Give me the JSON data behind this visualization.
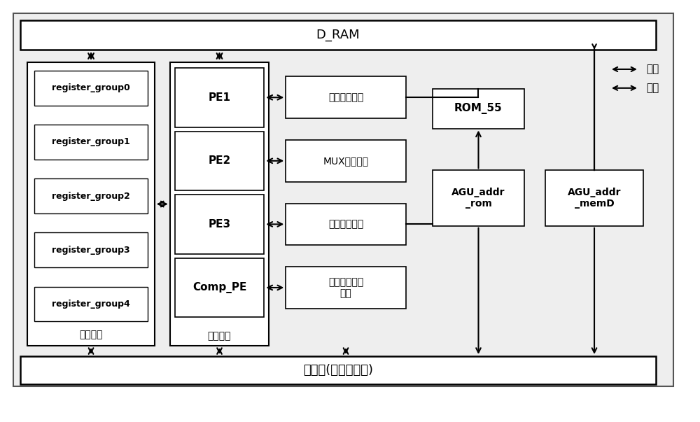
{
  "bg_color": "#ffffff",
  "title": "D_RAM",
  "bottom_label": "控制器(有限状态机)",
  "register_group_label": "寄存器组",
  "pe_group_label": "处理单元",
  "legend_data_label": "数据",
  "legend_ctrl_label": "控制",
  "register_boxes": [
    "register_group0",
    "register_group1",
    "register_group2",
    "register_group3",
    "register_group4"
  ],
  "pe_boxes": [
    "PE1",
    "PE2",
    "PE3",
    "Comp_PE"
  ],
  "control_boxes": [
    "系统延时模块",
    "MUX配置模块",
    "计算控制模块",
    "信号源数估计\n模块"
  ],
  "rom_box": "ROM_55",
  "agu_rom_box": "AGU_addr\n_rom",
  "agu_memd_box": "AGU_addr\n_memD"
}
